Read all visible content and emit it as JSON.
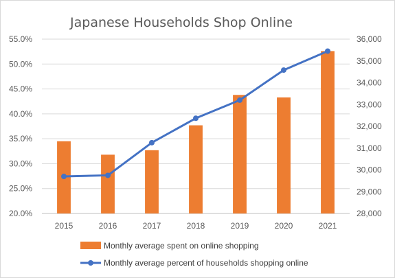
{
  "chart_data": {
    "type": "bar+line",
    "title": "Japanese Households Shop Online",
    "categories": [
      "2015",
      "2016",
      "2017",
      "2018",
      "2019",
      "2020",
      "2021"
    ],
    "left_axis": {
      "min": 0.2,
      "max": 0.55,
      "step": 0.05,
      "tick_labels": [
        "20.0%",
        "25.0%",
        "30.0%",
        "35.0%",
        "40.0%",
        "45.0%",
        "50.0%",
        "55.0%"
      ]
    },
    "right_axis": {
      "min": 28000,
      "max": 36000,
      "step": 1000,
      "tick_labels": [
        "28,000",
        "29,000",
        "30,000",
        "31,000",
        "32,000",
        "33,000",
        "34,000",
        "35,000",
        "36,000"
      ]
    },
    "series": [
      {
        "name": "Monthly average spent on online shopping",
        "type": "bar",
        "axis": "left",
        "color": "#ED7D31",
        "values": [
          0.345,
          0.318,
          0.327,
          0.377,
          0.438,
          0.433,
          0.526
        ]
      },
      {
        "name": "Monthly average percent of households shopping online",
        "type": "line",
        "axis": "right",
        "color": "#4472C4",
        "values": [
          29700,
          29750,
          31250,
          32370,
          33200,
          34580,
          35450
        ]
      }
    ],
    "legend_position": "bottom",
    "grid": true
  }
}
